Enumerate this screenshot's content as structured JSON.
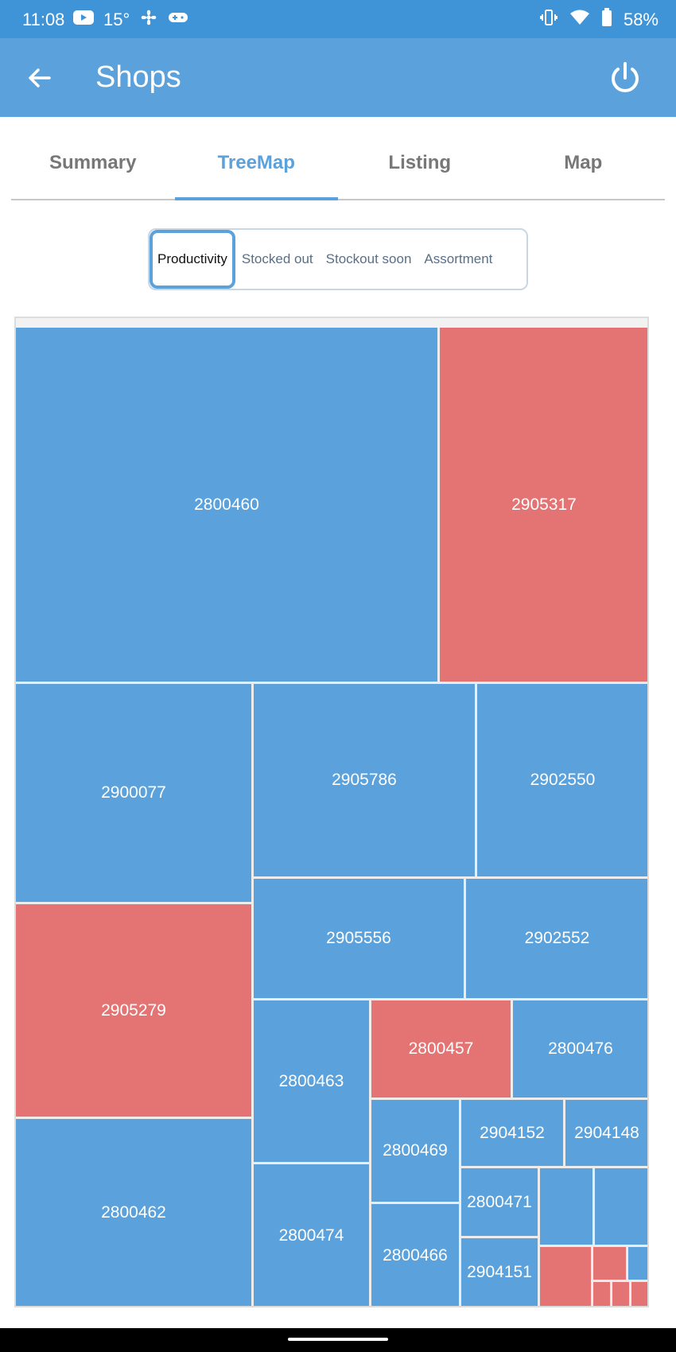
{
  "status_bar": {
    "time": "11:08",
    "temperature": "15°",
    "battery": "58%"
  },
  "app_bar": {
    "title": "Shops"
  },
  "tabs": [
    {
      "label": "Summary",
      "active": false
    },
    {
      "label": "TreeMap",
      "active": true
    },
    {
      "label": "Listing",
      "active": false
    },
    {
      "label": "Map",
      "active": false
    }
  ],
  "segments": [
    {
      "label": "Productivity",
      "active": true
    },
    {
      "label": "Stocked out",
      "active": false
    },
    {
      "label": "Stockout soon",
      "active": false
    },
    {
      "label": "Assortment",
      "active": false
    }
  ],
  "colors": {
    "blue": "#5ba1db",
    "red": "#e37473"
  },
  "treemap_tiles": [
    {
      "label": "2800460",
      "color": "blue"
    },
    {
      "label": "2905317",
      "color": "red"
    },
    {
      "label": "2900077",
      "color": "blue"
    },
    {
      "label": "2905786",
      "color": "blue"
    },
    {
      "label": "2902550",
      "color": "blue"
    },
    {
      "label": "2905556",
      "color": "blue"
    },
    {
      "label": "2902552",
      "color": "blue"
    },
    {
      "label": "2905279",
      "color": "red"
    },
    {
      "label": "2800463",
      "color": "blue"
    },
    {
      "label": "2800457",
      "color": "red"
    },
    {
      "label": "2800476",
      "color": "blue"
    },
    {
      "label": "2800469",
      "color": "blue"
    },
    {
      "label": "2904152",
      "color": "blue"
    },
    {
      "label": "2904148",
      "color": "blue"
    },
    {
      "label": "2800462",
      "color": "blue"
    },
    {
      "label": "2800474",
      "color": "blue"
    },
    {
      "label": "2800471",
      "color": "blue"
    },
    {
      "label": "2800466",
      "color": "blue"
    },
    {
      "label": "2904151",
      "color": "blue"
    },
    {
      "label": "",
      "color": "blue"
    },
    {
      "label": "",
      "color": "blue"
    },
    {
      "label": "",
      "color": "red"
    },
    {
      "label": "",
      "color": "red"
    },
    {
      "label": "",
      "color": "blue"
    },
    {
      "label": "",
      "color": "red"
    },
    {
      "label": "",
      "color": "red"
    },
    {
      "label": "",
      "color": "red"
    }
  ]
}
